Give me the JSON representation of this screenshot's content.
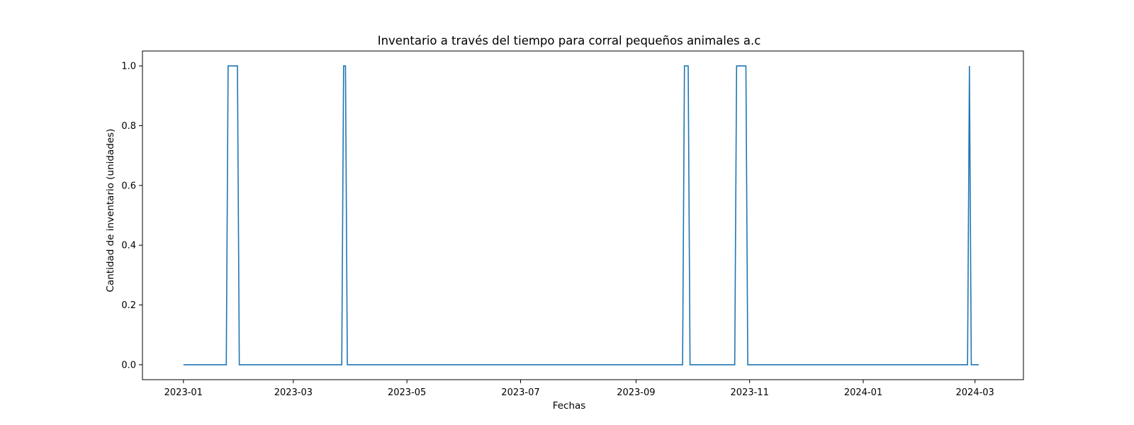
{
  "chart_data": {
    "type": "line",
    "title": "Inventario a través del tiempo para corral pequeños animales a.c",
    "xlabel": "Fechas",
    "ylabel": "Cantidad de inventario (unidades)",
    "x_type": "date",
    "xlim": [
      "2022-12-10",
      "2024-03-27"
    ],
    "ylim": [
      -0.05,
      1.05
    ],
    "x_ticks": [
      "2023-01",
      "2023-03",
      "2023-05",
      "2023-07",
      "2023-09",
      "2023-11",
      "2024-01",
      "2024-03"
    ],
    "y_ticks": [
      "0.0",
      "0.2",
      "0.4",
      "0.6",
      "0.8",
      "1.0"
    ],
    "grid": false,
    "legend": "none",
    "series_color": "#1f77b4",
    "series": [
      {
        "x": [
          "2023-01-01",
          "2023-01-24",
          "2023-01-25",
          "2023-01-30",
          "2023-01-31",
          "2023-03-27",
          "2023-03-28",
          "2023-03-29",
          "2023-03-30",
          "2023-09-26",
          "2023-09-27",
          "2023-09-29",
          "2023-09-30",
          "2023-10-24",
          "2023-10-25",
          "2023-10-30",
          "2023-10-31",
          "2024-02-26",
          "2024-02-27",
          "2024-02-28",
          "2024-03-03"
        ],
        "y": [
          0,
          0,
          1,
          1,
          0,
          0,
          1,
          1,
          0,
          0,
          1,
          1,
          0,
          0,
          1,
          1,
          0,
          0,
          1,
          0,
          0
        ]
      }
    ]
  }
}
